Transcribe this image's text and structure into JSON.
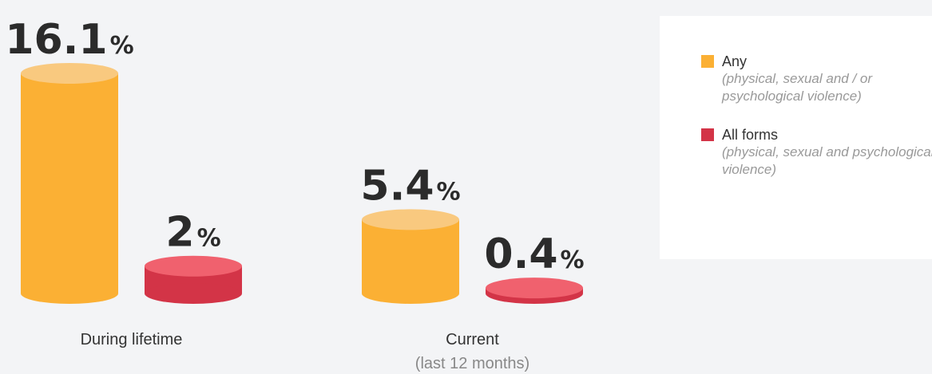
{
  "chart_data": {
    "type": "cylinder_bar",
    "categories": [
      "During lifetime",
      "Current"
    ],
    "category_notes": [
      null,
      "(last 12 months)"
    ],
    "series": [
      {
        "name": "Any",
        "description": "(physical, sexual and / or psychological violence)",
        "color": "#fbb034",
        "top_color": "#f9c97f",
        "values": [
          16.1,
          5.4
        ],
        "value_labels": [
          "16.1%",
          "5.4%"
        ]
      },
      {
        "name": "All forms",
        "description": "(physical, sexual and psychological violence)",
        "color": "#d33447",
        "top_color": "#f0616e",
        "values": [
          2,
          0.4
        ],
        "value_labels": [
          "2%",
          "0.4%"
        ]
      }
    ]
  }
}
